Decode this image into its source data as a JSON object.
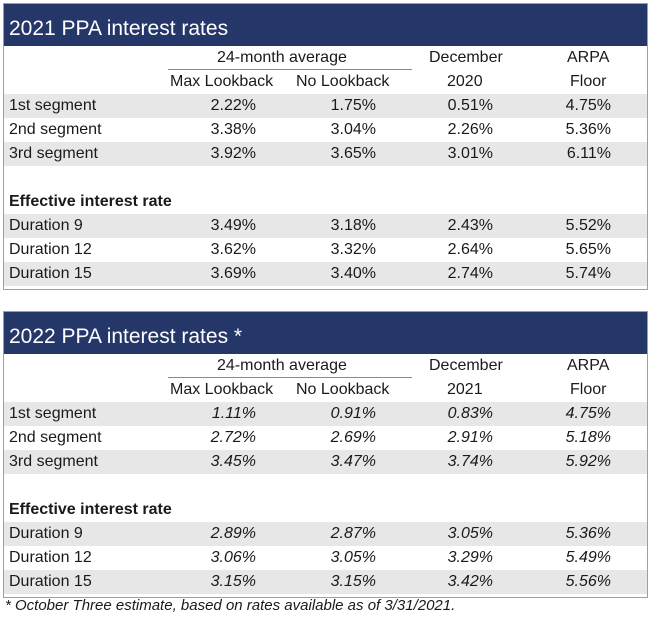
{
  "tables": [
    {
      "title": "2021 PPA interest rates",
      "header": {
        "avg_label": "24-month average",
        "max_lookback": "Max Lookback",
        "no_lookback": "No Lookback",
        "december": "December",
        "dec_year": "2020",
        "arpa": "ARPA",
        "floor": "Floor"
      },
      "segments": [
        {
          "label": "1st segment",
          "max": "2.22%",
          "no": "1.75%",
          "dec": "0.51%",
          "arpa": "4.75%"
        },
        {
          "label": "2nd segment",
          "max": "3.38%",
          "no": "3.04%",
          "dec": "2.26%",
          "arpa": "5.36%"
        },
        {
          "label": "3rd segment",
          "max": "3.92%",
          "no": "3.65%",
          "dec": "3.01%",
          "arpa": "6.11%"
        }
      ],
      "effective_label": "Effective interest rate",
      "durations": [
        {
          "label": "Duration 9",
          "max": "3.49%",
          "no": "3.18%",
          "dec": "2.43%",
          "arpa": "5.52%"
        },
        {
          "label": "Duration 12",
          "max": "3.62%",
          "no": "3.32%",
          "dec": "2.64%",
          "arpa": "5.65%"
        },
        {
          "label": "Duration 15",
          "max": "3.69%",
          "no": "3.40%",
          "dec": "2.74%",
          "arpa": "5.74%"
        }
      ]
    },
    {
      "title": "2022 PPA interest rates *",
      "header": {
        "avg_label": "24-month average",
        "max_lookback": "Max Lookback",
        "no_lookback": "No Lookback",
        "december": "December",
        "dec_year": "2021",
        "arpa": "ARPA",
        "floor": "Floor"
      },
      "segments": [
        {
          "label": "1st segment",
          "max": "1.11%",
          "no": "0.91%",
          "dec": "0.83%",
          "arpa": "4.75%"
        },
        {
          "label": "2nd segment",
          "max": "2.72%",
          "no": "2.69%",
          "dec": "2.91%",
          "arpa": "5.18%"
        },
        {
          "label": "3rd segment",
          "max": "3.45%",
          "no": "3.47%",
          "dec": "3.74%",
          "arpa": "5.92%"
        }
      ],
      "effective_label": "Effective interest rate",
      "durations": [
        {
          "label": "Duration 9",
          "max": "2.89%",
          "no": "2.87%",
          "dec": "3.05%",
          "arpa": "5.36%"
        },
        {
          "label": "Duration 12",
          "max": "3.06%",
          "no": "3.05%",
          "dec": "3.29%",
          "arpa": "5.49%"
        },
        {
          "label": "Duration 15",
          "max": "3.15%",
          "no": "3.15%",
          "dec": "3.42%",
          "arpa": "5.56%"
        }
      ]
    }
  ],
  "footnote": "* October Three estimate, based on rates available as of 3/31/2021.",
  "colors": {
    "title_bg": "#253769",
    "row_shade": "#e7e7e7",
    "avg_rule": "#3fa6b4"
  }
}
